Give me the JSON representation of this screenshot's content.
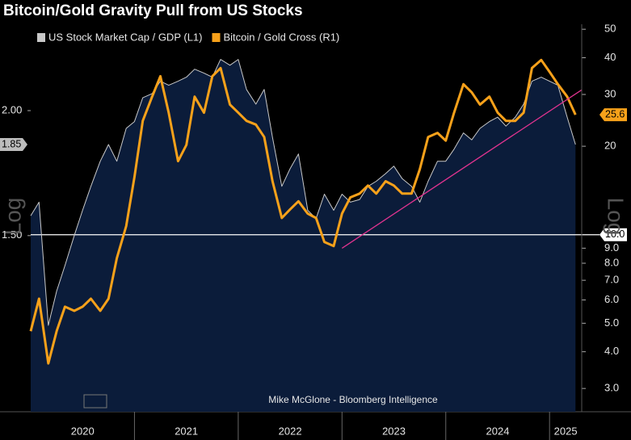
{
  "chart_data": {
    "type": "line",
    "title": "Bitcoin/Gold Gravity Pull from US Stocks",
    "source": "Mike McGlone - Bloomberg Intelligence",
    "y_axis_note": "Log",
    "y2_axis_note": "Log",
    "log_scale": true,
    "x": [
      2020,
      2020.08,
      2020.17,
      2020.25,
      2020.33,
      2020.42,
      2020.5,
      2020.58,
      2020.67,
      2020.75,
      2020.83,
      2020.92,
      2021,
      2021.08,
      2021.17,
      2021.25,
      2021.33,
      2021.42,
      2021.5,
      2021.58,
      2021.67,
      2021.75,
      2021.83,
      2021.92,
      2022,
      2022.08,
      2022.17,
      2022.25,
      2022.33,
      2022.42,
      2022.5,
      2022.58,
      2022.67,
      2022.75,
      2022.83,
      2022.92,
      2023,
      2023.08,
      2023.17,
      2023.25,
      2023.33,
      2023.42,
      2023.5,
      2023.58,
      2023.67,
      2023.75,
      2023.83,
      2023.92,
      2024,
      2024.08,
      2024.17,
      2024.25,
      2024.33,
      2024.42,
      2024.5,
      2024.58,
      2024.67,
      2024.75,
      2024.83,
      2024.92,
      2025,
      2025.08,
      2025.17,
      2025.25
    ],
    "xlim": [
      2020,
      2025.31
    ],
    "xticks": [
      2020,
      2021,
      2022,
      2023,
      2024,
      2025
    ],
    "series": [
      {
        "name": "US Stock Market Cap / GDP (L1)",
        "color": "#c8c8c8",
        "fill": "#0b1c3a",
        "axis": "y",
        "values": [
          1.57,
          1.62,
          1.22,
          1.32,
          1.4,
          1.5,
          1.59,
          1.68,
          1.78,
          1.85,
          1.78,
          1.92,
          1.95,
          2.06,
          2.08,
          2.14,
          2.12,
          2.14,
          2.16,
          2.2,
          2.18,
          2.16,
          2.25,
          2.22,
          2.25,
          2.1,
          2.03,
          2.1,
          1.88,
          1.68,
          1.75,
          1.81,
          1.59,
          1.56,
          1.65,
          1.59,
          1.65,
          1.62,
          1.63,
          1.68,
          1.7,
          1.73,
          1.76,
          1.71,
          1.68,
          1.62,
          1.7,
          1.78,
          1.78,
          1.83,
          1.9,
          1.87,
          1.92,
          1.95,
          1.97,
          1.93,
          1.97,
          2.03,
          2.14,
          2.16,
          2.14,
          2.12,
          1.97,
          1.85
        ]
      },
      {
        "name": "Bitcoin / Gold Cross (R1)",
        "color": "#f7a11a",
        "axis": "y2",
        "values": [
          4.7,
          6.06,
          3.65,
          4.7,
          5.69,
          5.51,
          5.69,
          6.06,
          5.51,
          6.06,
          8.32,
          10.7,
          15.7,
          24.4,
          29.5,
          34.6,
          26.0,
          17.8,
          20.2,
          29.5,
          26.0,
          34.6,
          36.9,
          27.7,
          26.0,
          24.4,
          23.7,
          21.5,
          15.2,
          11.4,
          12.2,
          13.0,
          11.8,
          11.4,
          9.45,
          9.15,
          11.8,
          13.4,
          13.8,
          14.7,
          13.8,
          15.2,
          14.7,
          13.8,
          13.8,
          16.7,
          21.5,
          22.2,
          20.9,
          26.0,
          32.5,
          30.5,
          27.7,
          29.5,
          26.0,
          24.4,
          24.4,
          26.0,
          36.9,
          39.3,
          35.8,
          32.5,
          29.5,
          25.6
        ]
      }
    ],
    "ylim": [
      1.0,
      2.44
    ],
    "yticks": [
      {
        "value": 1.5,
        "label": "1.50"
      },
      {
        "value": 2.0,
        "label": "2.00"
      }
    ],
    "y2lim": [
      2.5,
      52
    ],
    "y2ticks": [
      50,
      40,
      30,
      20,
      {
        "value": 9,
        "label": "9.0"
      },
      {
        "value": 8,
        "label": "8.0"
      },
      {
        "value": 7,
        "label": "7.0"
      },
      {
        "value": 6,
        "label": "6.0"
      },
      {
        "value": 5,
        "label": "5.0"
      },
      {
        "value": 4,
        "label": "4.0"
      },
      {
        "value": 3,
        "label": "3.0"
      }
    ],
    "reference_line": {
      "value": 10,
      "label": "10.0",
      "axis": "y2",
      "color": "#ffffff"
    },
    "trendline": {
      "x": [
        2023,
        2025.31
      ],
      "values": [
        9.0,
        31.1
      ],
      "axis": "y2",
      "color": "#e0338f"
    },
    "legend": "top-left"
  }
}
